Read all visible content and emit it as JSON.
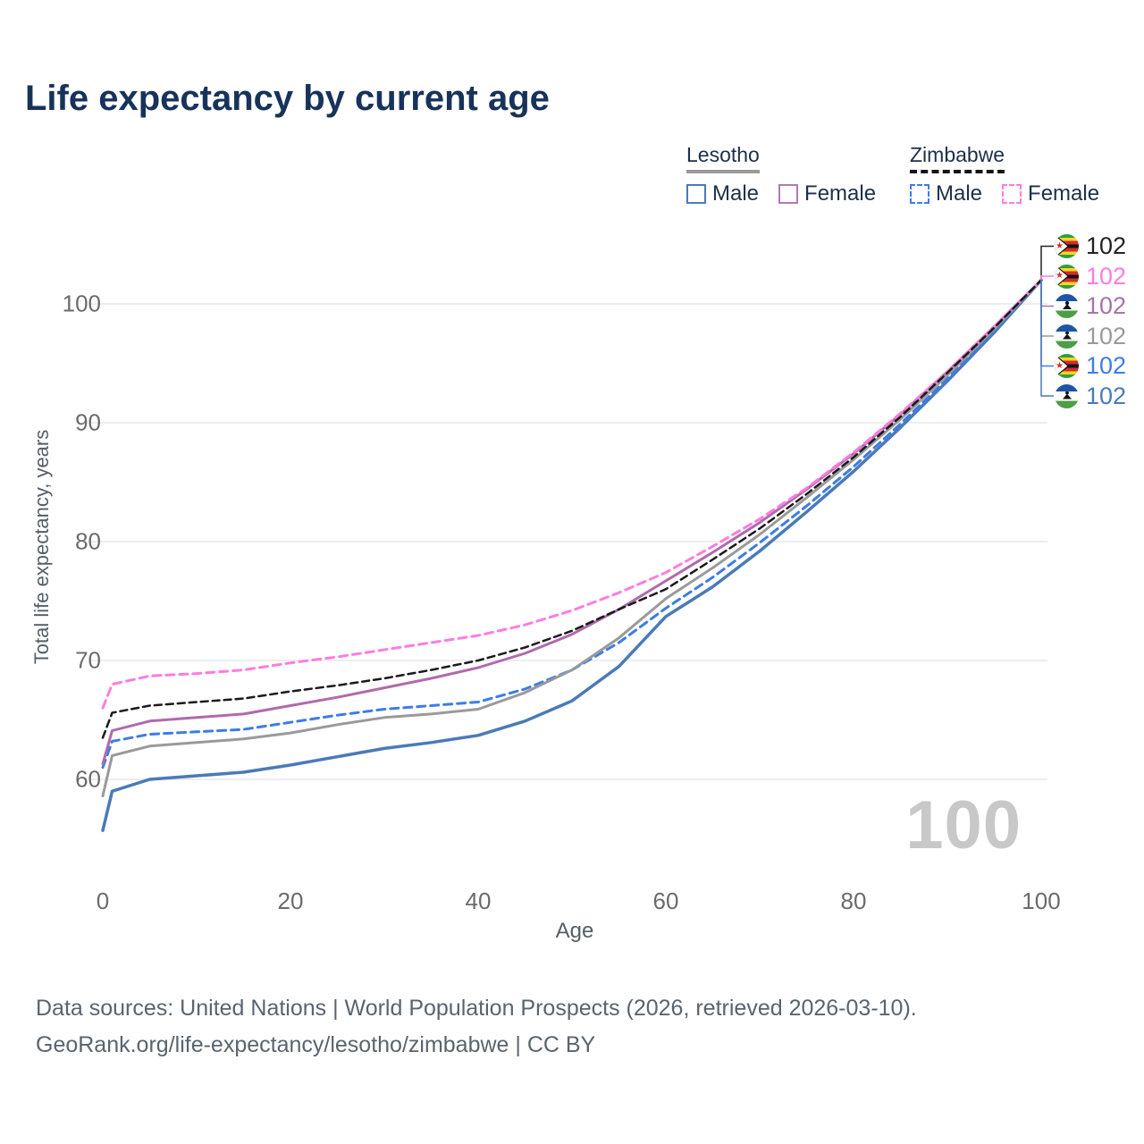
{
  "title": "Life expectancy by current age",
  "watermark": "100",
  "legend": {
    "groups": [
      {
        "id": "lesotho",
        "label": "Lesotho",
        "underline_style": "solid",
        "underline_color": "#9a9a9a",
        "items": [
          {
            "label": "Male",
            "color": "#4a7ab8",
            "style": "solid"
          },
          {
            "label": "Female",
            "color": "#b07ab0",
            "style": "solid"
          }
        ]
      },
      {
        "id": "zimbabwe",
        "label": "Zimbabwe",
        "underline_style": "dashed",
        "underline_color": "#141414",
        "items": [
          {
            "label": "Male",
            "color": "#3d7ce8",
            "style": "dashed"
          },
          {
            "label": "Female",
            "color": "#ff7ce0",
            "style": "dashed"
          }
        ]
      }
    ]
  },
  "chart_data": {
    "type": "line",
    "title": "Life expectancy by current age",
    "xlabel": "Age",
    "ylabel": "Total life expectancy, years",
    "xlim": [
      0,
      100
    ],
    "ylim": [
      51,
      104
    ],
    "x_ticks": [
      0,
      20,
      40,
      60,
      80,
      100
    ],
    "y_ticks": [
      60,
      70,
      80,
      90,
      100
    ],
    "grid": "horizontal",
    "legend_position": "top-right",
    "x": [
      0,
      1,
      5,
      10,
      15,
      20,
      25,
      30,
      35,
      40,
      45,
      50,
      55,
      60,
      65,
      70,
      75,
      80,
      85,
      90,
      95,
      100
    ],
    "series": [
      {
        "id": "lesotho-male",
        "name": "Lesotho Male",
        "country": "Lesotho",
        "sex": "Male",
        "color": "#4a7ab8",
        "dash": null,
        "width": 3.5,
        "values": [
          55.7,
          59.0,
          60.0,
          60.3,
          60.6,
          61.2,
          61.9,
          62.6,
          63.1,
          63.7,
          64.9,
          66.6,
          69.5,
          73.7,
          76.2,
          79.2,
          82.5,
          85.9,
          89.6,
          93.5,
          97.6,
          102
        ]
      },
      {
        "id": "zimbabwe-male",
        "name": "Zimbabwe Male",
        "country": "Zimbabwe",
        "sex": "Male",
        "color": "#3d7ce8",
        "dash": "9 6",
        "width": 3,
        "values": [
          61.0,
          63.2,
          63.8,
          64.0,
          64.2,
          64.8,
          65.4,
          65.9,
          66.2,
          66.5,
          67.6,
          69.2,
          71.5,
          74.4,
          77.0,
          79.9,
          83.0,
          86.3,
          89.9,
          93.7,
          97.8,
          102
        ]
      },
      {
        "id": "lesotho-combined",
        "name": "Lesotho",
        "country": "Lesotho",
        "sex": "Both",
        "color": "#9a9a9a",
        "dash": null,
        "width": 3,
        "values": [
          58.6,
          62.0,
          62.8,
          63.1,
          63.4,
          63.9,
          64.6,
          65.2,
          65.5,
          65.9,
          67.3,
          69.2,
          71.9,
          75.2,
          77.8,
          80.6,
          83.7,
          86.9,
          90.3,
          94.0,
          97.9,
          102
        ]
      },
      {
        "id": "lesotho-female",
        "name": "Lesotho Female",
        "country": "Lesotho",
        "sex": "Female",
        "color": "#b06aad",
        "dash": null,
        "width": 3,
        "values": [
          61.3,
          64.1,
          64.9,
          65.2,
          65.5,
          66.2,
          66.9,
          67.7,
          68.5,
          69.4,
          70.6,
          72.2,
          74.3,
          76.7,
          79.1,
          81.6,
          84.4,
          87.4,
          90.7,
          94.3,
          98.1,
          102
        ]
      },
      {
        "id": "zimbabwe-female",
        "name": "Zimbabwe Female",
        "country": "Zimbabwe",
        "sex": "Female",
        "color": "#ff7ce0",
        "dash": "9 6",
        "width": 3,
        "values": [
          66.0,
          68.0,
          68.7,
          68.9,
          69.2,
          69.8,
          70.3,
          70.9,
          71.5,
          72.1,
          73.0,
          74.2,
          75.7,
          77.4,
          79.6,
          81.9,
          84.5,
          87.5,
          90.8,
          94.3,
          98.1,
          102
        ]
      },
      {
        "id": "zimbabwe-combined",
        "name": "Zimbabwe",
        "country": "Zimbabwe",
        "sex": "Both",
        "color": "#1a1a1a",
        "dash": "8 5",
        "width": 2.5,
        "values": [
          63.5,
          65.6,
          66.2,
          66.5,
          66.8,
          67.4,
          67.9,
          68.5,
          69.2,
          70.0,
          71.1,
          72.5,
          74.3,
          76.0,
          78.5,
          81.1,
          84.0,
          87.1,
          90.5,
          94.2,
          98.0,
          102
        ]
      }
    ]
  },
  "end_labels": [
    {
      "flag": "zimbabwe",
      "value": "102",
      "color": "#222222"
    },
    {
      "flag": "zimbabwe",
      "value": "102",
      "color": "#ff7ce0"
    },
    {
      "flag": "lesotho",
      "value": "102",
      "color": "#a873a8"
    },
    {
      "flag": "lesotho",
      "value": "102",
      "color": "#9a9a9a"
    },
    {
      "flag": "zimbabwe",
      "value": "102",
      "color": "#3d7ce8"
    },
    {
      "flag": "lesotho",
      "value": "102",
      "color": "#4a7ab8"
    }
  ],
  "footer": {
    "line1": "Data sources: United Nations | World Population Prospects (2026, retrieved 2026-03-10).",
    "line2": "GeoRank.org/life-expectancy/lesotho/zimbabwe | CC BY"
  }
}
